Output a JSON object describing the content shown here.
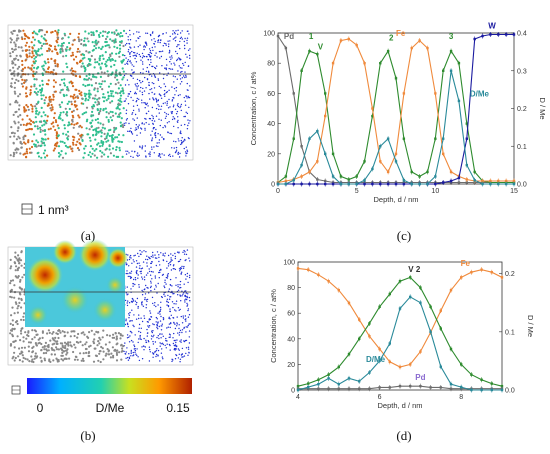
{
  "panels": {
    "a": {
      "label": "(a)",
      "scale": "1 nm³"
    },
    "b": {
      "label": "(b)",
      "cbar_min": "0",
      "cbar_title": "D/Me",
      "cbar_max": "0.15"
    },
    "c": {
      "label": "(c)"
    },
    "d": {
      "label": "(d)"
    }
  },
  "colors": {
    "Pd": "#6b6b6b",
    "V": "#2e8b2e",
    "Fe": "#f08a3c",
    "W": "#1a1aa0",
    "DMe": "#2a8a9a",
    "atom_gray": "#888888",
    "atom_green": "#2fbf8f",
    "atom_orange": "#d2691e",
    "atom_blue": "#1e2ed2"
  },
  "chart_data": [
    {
      "type": "line",
      "panel": "c",
      "xlabel": "Depth, d / nm",
      "ylabel": "Concentration, c / at%",
      "y2label": "D / Me",
      "xlim": [
        0,
        15
      ],
      "ylim": [
        0,
        100
      ],
      "y2lim": [
        0,
        0.4
      ],
      "xticks": [
        0,
        5,
        10,
        15
      ],
      "yticks": [
        0,
        20,
        40,
        60,
        80,
        100
      ],
      "y2ticks": [
        0.0,
        0.1,
        0.2,
        0.3,
        0.4
      ],
      "annotations": [
        "Pd",
        "1",
        "V",
        "Fe",
        "2",
        "3",
        "W",
        "D/Me"
      ],
      "x": [
        0,
        0.5,
        1.0,
        1.5,
        2.0,
        2.5,
        3.0,
        3.5,
        4.0,
        4.5,
        5.0,
        5.5,
        6.0,
        6.5,
        7.0,
        7.5,
        8.0,
        8.5,
        9.0,
        9.5,
        10.0,
        10.5,
        11.0,
        11.5,
        12.0,
        12.5,
        13.0,
        13.5,
        14.0,
        14.5,
        15.0
      ],
      "series": [
        {
          "name": "Pd",
          "axis": "left",
          "values": [
            98,
            90,
            60,
            25,
            8,
            3,
            2,
            1,
            1,
            1,
            1,
            1,
            1,
            1,
            1,
            1,
            1,
            1,
            1,
            1,
            1,
            1,
            1,
            1,
            1,
            1,
            1,
            1,
            1,
            1,
            1
          ]
        },
        {
          "name": "V",
          "axis": "left",
          "values": [
            1,
            5,
            30,
            75,
            88,
            86,
            60,
            20,
            5,
            3,
            5,
            15,
            45,
            80,
            88,
            70,
            30,
            8,
            5,
            8,
            30,
            75,
            88,
            80,
            40,
            8,
            2,
            1,
            1,
            1,
            1
          ]
        },
        {
          "name": "Fe",
          "axis": "left",
          "values": [
            1,
            2,
            3,
            5,
            8,
            15,
            45,
            80,
            95,
            96,
            92,
            80,
            50,
            15,
            8,
            20,
            60,
            90,
            95,
            90,
            60,
            20,
            8,
            5,
            3,
            2,
            2,
            2,
            2,
            2,
            2
          ]
        },
        {
          "name": "W",
          "axis": "left",
          "values": [
            0,
            0,
            0,
            0,
            0,
            0,
            0,
            0,
            0,
            0,
            0,
            0,
            0,
            0,
            0,
            0,
            0,
            0,
            0,
            0,
            0,
            1,
            2,
            4,
            30,
            96,
            98,
            99,
            99,
            99,
            99
          ]
        },
        {
          "name": "D/Me",
          "axis": "right",
          "values": [
            0.0,
            0.0,
            0.01,
            0.05,
            0.12,
            0.14,
            0.08,
            0.02,
            0.0,
            0.0,
            0.0,
            0.01,
            0.04,
            0.1,
            0.12,
            0.06,
            0.01,
            0.0,
            0.0,
            0.0,
            0.02,
            0.12,
            0.3,
            0.22,
            0.05,
            0.01,
            0.0,
            0.0,
            0.0,
            0.0,
            0.0
          ]
        }
      ]
    },
    {
      "type": "line",
      "panel": "d",
      "xlabel": "Depth, d / nm",
      "ylabel": "Concentration, c / at%",
      "y2label": "D / Me",
      "xlim": [
        4,
        9
      ],
      "ylim": [
        0,
        100
      ],
      "y2lim": [
        0,
        0.22
      ],
      "xticks": [
        4,
        6,
        8
      ],
      "yticks": [
        0,
        20,
        40,
        60,
        80,
        100
      ],
      "y2ticks": [
        0.0,
        0.1,
        0.2
      ],
      "annotations": [
        "V 2",
        "Fe",
        "D/Me",
        "Pd"
      ],
      "x": [
        4.0,
        4.25,
        4.5,
        4.75,
        5.0,
        5.25,
        5.5,
        5.75,
        6.0,
        6.25,
        6.5,
        6.75,
        7.0,
        7.25,
        7.5,
        7.75,
        8.0,
        8.25,
        8.5,
        8.75,
        9.0
      ],
      "series": [
        {
          "name": "Fe",
          "axis": "left",
          "values": [
            95,
            94,
            90,
            85,
            78,
            68,
            55,
            42,
            32,
            22,
            18,
            20,
            30,
            45,
            62,
            78,
            88,
            92,
            94,
            92,
            88
          ]
        },
        {
          "name": "V",
          "axis": "left",
          "values": [
            3,
            5,
            8,
            12,
            18,
            28,
            40,
            52,
            65,
            75,
            85,
            88,
            80,
            65,
            48,
            32,
            20,
            12,
            8,
            5,
            3
          ]
        },
        {
          "name": "Pd",
          "axis": "left",
          "values": [
            1,
            1,
            1,
            1,
            1,
            1,
            1,
            1,
            2,
            2,
            3,
            3,
            3,
            2,
            2,
            1,
            1,
            1,
            1,
            1,
            1
          ]
        },
        {
          "name": "D/Me",
          "axis": "right",
          "values": [
            0.0,
            0.005,
            0.01,
            0.02,
            0.01,
            0.02,
            0.015,
            0.03,
            0.05,
            0.08,
            0.14,
            0.16,
            0.15,
            0.1,
            0.04,
            0.01,
            0.005,
            0.0,
            0.0,
            0.0,
            0.0
          ]
        }
      ]
    }
  ]
}
